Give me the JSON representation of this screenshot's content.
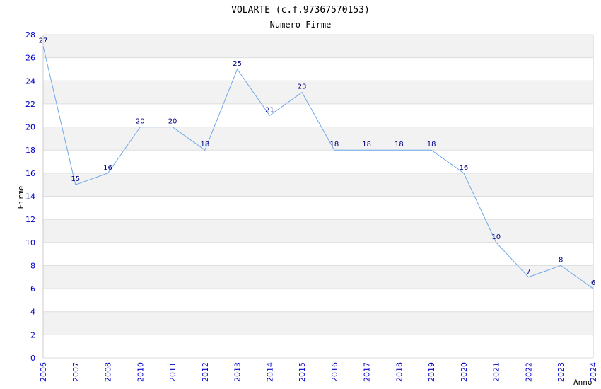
{
  "colors": {
    "line": "#6fa8e8",
    "band": "#f2f2f2",
    "grid": "#dddddd",
    "tick_text": "#0000cc",
    "data_label": "#000080"
  },
  "chart_data": {
    "type": "line",
    "title": "VOLARTE (c.f.97367570153)",
    "subtitle": "Numero Firme",
    "xlabel": "Anno",
    "ylabel": "Firme",
    "ylim": [
      0,
      28
    ],
    "yticks": [
      0,
      2,
      4,
      6,
      8,
      10,
      12,
      14,
      16,
      18,
      20,
      22,
      24,
      26,
      28
    ],
    "categories": [
      "2006",
      "2007",
      "2008",
      "2010",
      "2011",
      "2012",
      "2013",
      "2014",
      "2015",
      "2016",
      "2017",
      "2018",
      "2019",
      "2020",
      "2021",
      "2022",
      "2023",
      "2024"
    ],
    "values": [
      27,
      15,
      16,
      20,
      20,
      18,
      25,
      21,
      23,
      18,
      18,
      18,
      18,
      16,
      10,
      7,
      8,
      6
    ],
    "grid": true,
    "legend": "none"
  }
}
